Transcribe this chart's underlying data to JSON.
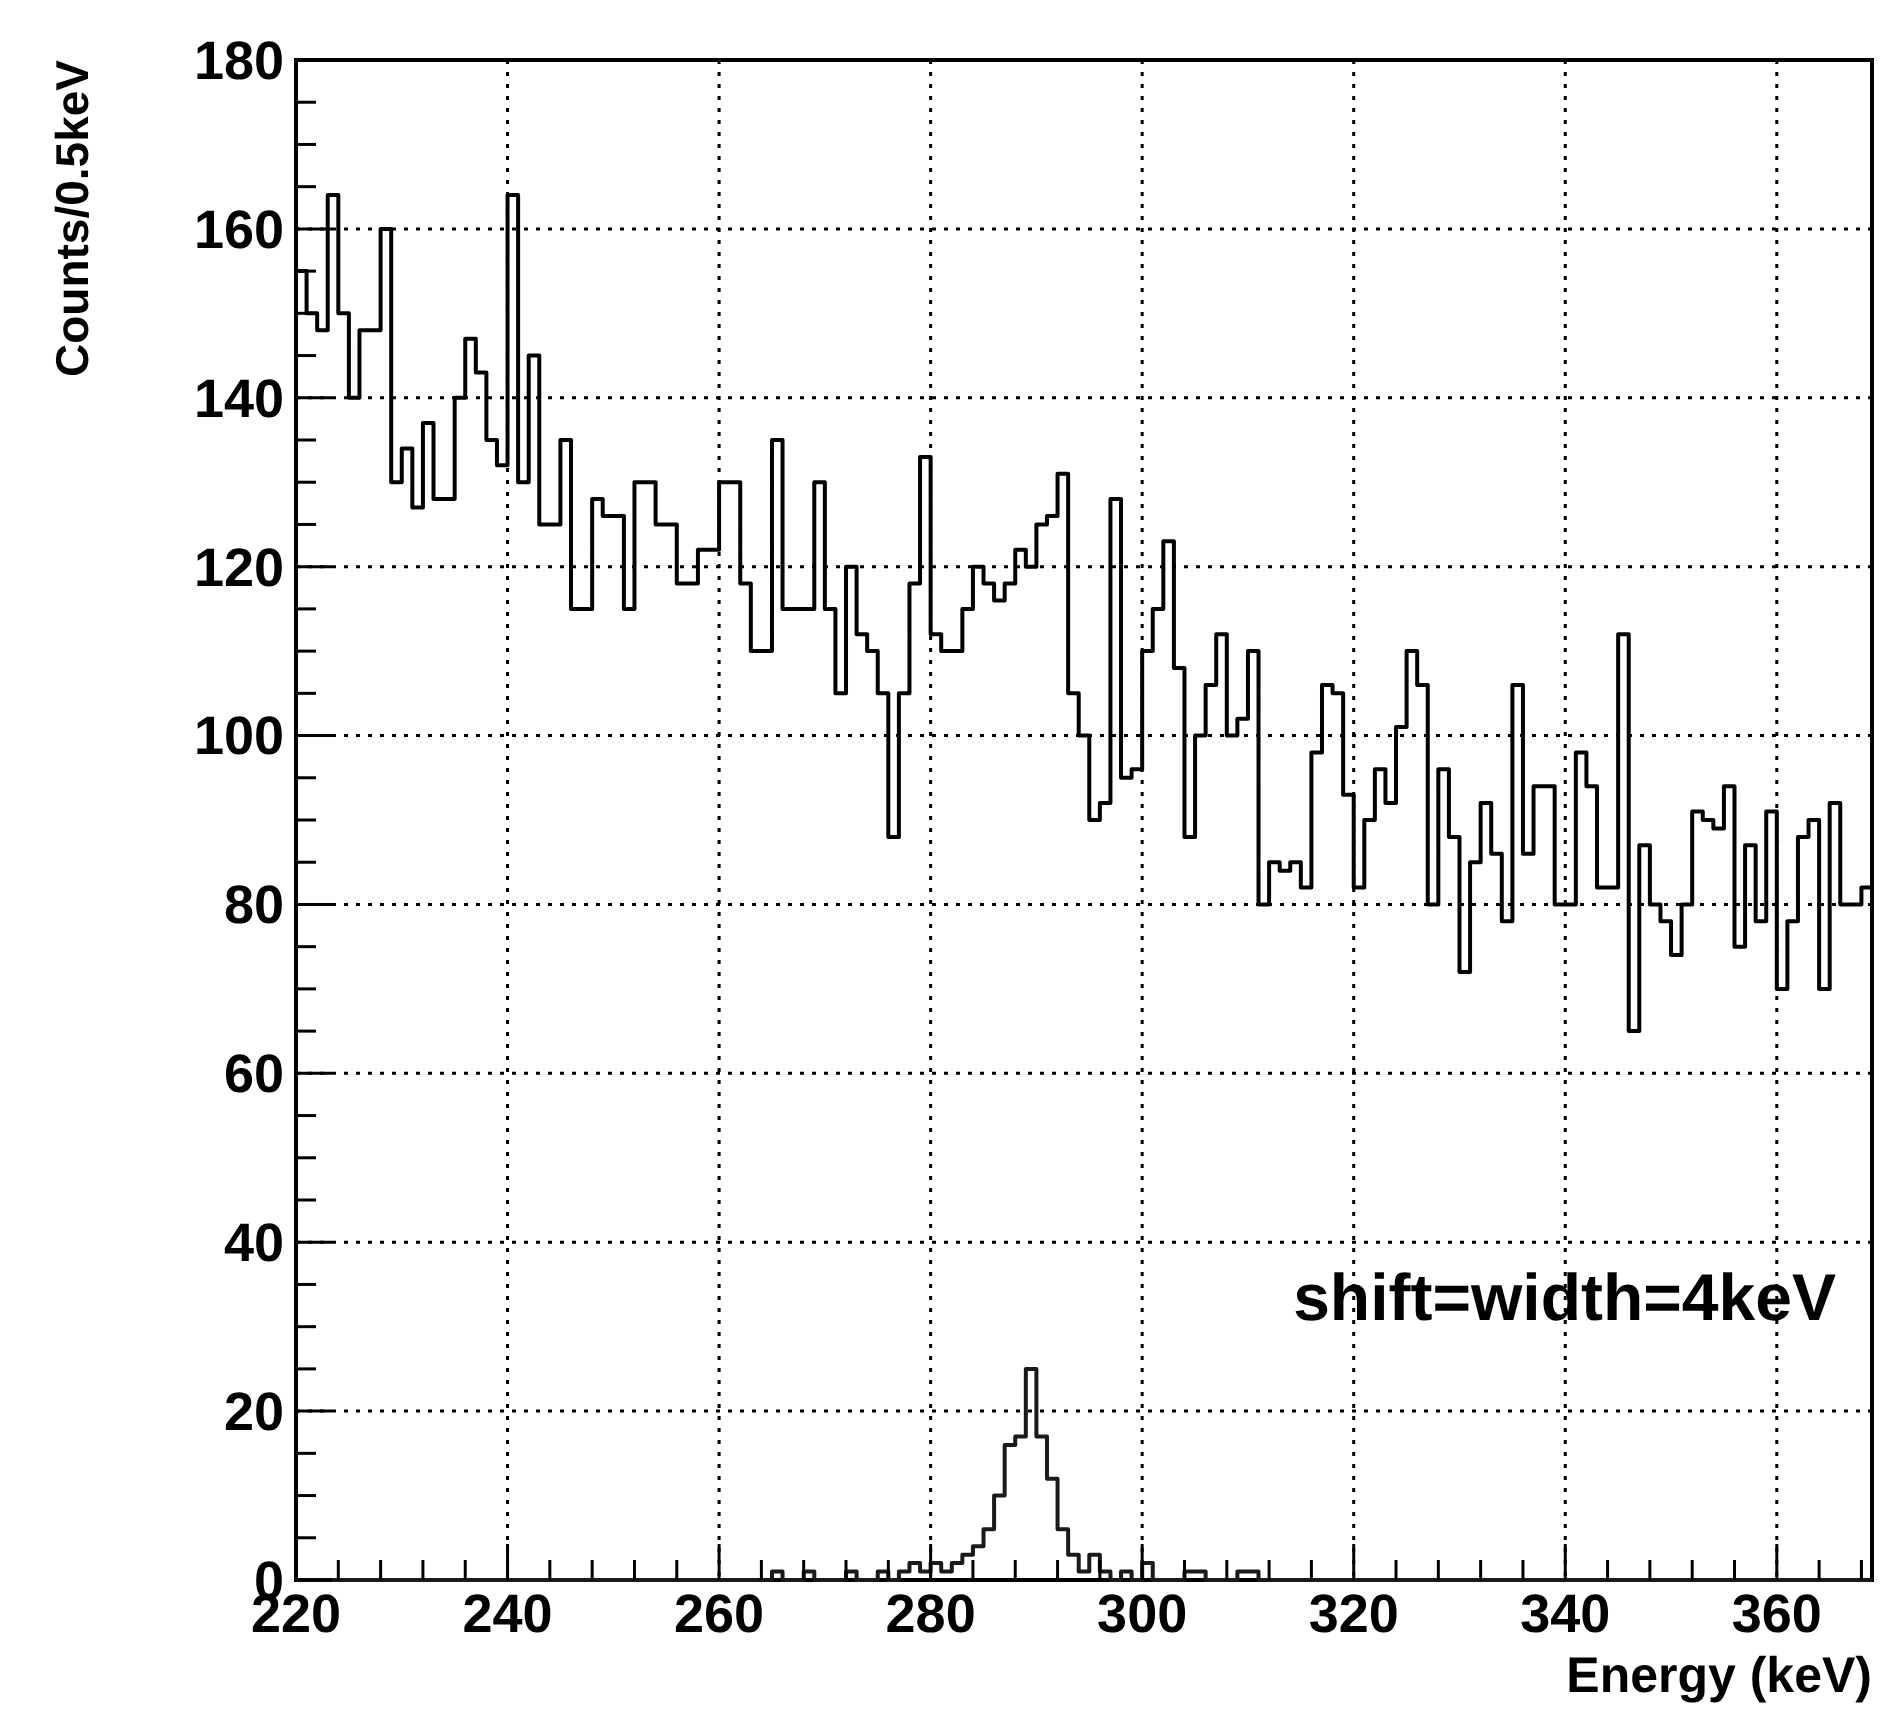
{
  "chart_data": {
    "type": "histogram",
    "xlabel": "Energy (keV)",
    "ylabel": "Counts/0.5keV",
    "annotations": [
      "shift=width=4keV"
    ],
    "bins": [
      220,
      221,
      222,
      223,
      224,
      225,
      226,
      227,
      228,
      229,
      230,
      231,
      232,
      233,
      234,
      235,
      236,
      237,
      238,
      239,
      240,
      241,
      242,
      243,
      244,
      245,
      246,
      247,
      248,
      249,
      250,
      251,
      252,
      253,
      254,
      255,
      256,
      257,
      258,
      259,
      260,
      261,
      262,
      263,
      264,
      265,
      266,
      267,
      268,
      269,
      270,
      271,
      272,
      273,
      274,
      275,
      276,
      277,
      278,
      279,
      280,
      281,
      282,
      283,
      284,
      285,
      286,
      287,
      288,
      289,
      290,
      291,
      292,
      293,
      294,
      295,
      296,
      297,
      298,
      299,
      300,
      301,
      302,
      303,
      304,
      305,
      306,
      307,
      308,
      309,
      310,
      311,
      312,
      313,
      314,
      315,
      316,
      317,
      318,
      319,
      320,
      321,
      322,
      323,
      324,
      325,
      326,
      327,
      328,
      329,
      330,
      331,
      332,
      333,
      334,
      335,
      336,
      337,
      338,
      339,
      340,
      341,
      342,
      343,
      344,
      345,
      346,
      347,
      348,
      349,
      350,
      351,
      352,
      353,
      354,
      355,
      356,
      357,
      358,
      359,
      360,
      361,
      362,
      363,
      364,
      365,
      366,
      367,
      368,
      369
    ],
    "series": [
      {
        "color": "#000000",
        "values": [
          155,
          150,
          148,
          164,
          150,
          140,
          148,
          148,
          160,
          130,
          134,
          127,
          137,
          128,
          128,
          140,
          147,
          143,
          135,
          132,
          164,
          130,
          145,
          125,
          125,
          135,
          115,
          115,
          128,
          126,
          126,
          115,
          130,
          130,
          125,
          125,
          118,
          118,
          122,
          122,
          130,
          130,
          118,
          110,
          110,
          135,
          115,
          115,
          115,
          130,
          115,
          105,
          120,
          112,
          110,
          105,
          88,
          105,
          118,
          133,
          112,
          110,
          110,
          115,
          120,
          118,
          116,
          118,
          122,
          120,
          125,
          126,
          131,
          105,
          100,
          90,
          92,
          128,
          95,
          96,
          110,
          115,
          123,
          108,
          88,
          100,
          106,
          112,
          100,
          102,
          110,
          80,
          85,
          84,
          85,
          82,
          98,
          106,
          105,
          93,
          82,
          90,
          96,
          92,
          101,
          110,
          106,
          80,
          96,
          88,
          72,
          85,
          92,
          86,
          78,
          106,
          86,
          94,
          94,
          80,
          80,
          98,
          94,
          82,
          82,
          112,
          65,
          87,
          80,
          78,
          74,
          80,
          91,
          90,
          89,
          94,
          75,
          87,
          78,
          91,
          70,
          78,
          88,
          90,
          70,
          92,
          80,
          80,
          82
        ]
      },
      {
        "color": "#1a1a1a",
        "values": [
          0,
          0,
          0,
          0,
          0,
          0,
          0,
          0,
          0,
          0,
          0,
          0,
          0,
          0,
          0,
          0,
          0,
          0,
          0,
          0,
          0,
          0,
          0,
          0,
          0,
          0,
          0,
          0,
          0,
          0,
          0,
          0,
          0,
          0,
          0,
          0,
          0,
          0,
          0,
          0,
          0,
          0,
          0,
          0,
          0,
          1,
          0,
          0,
          1,
          0,
          0,
          0,
          1,
          0,
          0,
          1,
          0,
          1,
          2,
          1,
          2,
          1,
          2,
          3,
          4,
          6,
          10,
          16,
          17,
          25,
          17,
          12,
          6,
          3,
          1,
          3,
          1,
          0,
          1,
          0,
          2,
          0,
          0,
          0,
          1,
          1,
          0,
          0,
          0,
          1,
          1,
          0,
          0,
          0,
          0,
          0,
          0,
          0,
          0,
          0,
          0,
          0,
          0,
          0,
          0,
          0,
          0,
          0,
          0,
          0,
          0,
          0,
          0,
          0,
          0,
          0,
          0,
          0,
          0,
          0,
          0,
          0,
          0,
          0,
          0,
          0,
          0,
          0,
          0,
          0,
          0,
          0,
          0,
          0,
          0,
          0,
          0,
          0,
          0,
          0,
          0,
          0,
          0,
          0,
          0,
          0,
          0,
          0,
          0
        ]
      }
    ],
    "xlim": [
      220,
      369
    ],
    "ylim": [
      0,
      180
    ],
    "xticks": [
      220,
      {
        "value": 224,
        "label": null
      },
      {
        "value": 228,
        "label": null
      },
      {
        "value": 232,
        "label": null
      },
      {
        "value": 236,
        "label": null
      },
      240,
      {
        "value": 244,
        "label": null
      },
      {
        "value": 248,
        "label": null
      },
      {
        "value": 252,
        "label": null
      },
      {
        "value": 256,
        "label": null
      },
      260,
      {
        "value": 264,
        "label": null
      },
      {
        "value": 268,
        "label": null
      },
      {
        "value": 272,
        "label": null
      },
      {
        "value": 276,
        "label": null
      },
      280,
      {
        "value": 284,
        "label": null
      },
      {
        "value": 288,
        "label": null
      },
      {
        "value": 292,
        "label": null
      },
      {
        "value": 296,
        "label": null
      },
      300,
      {
        "value": 304,
        "label": null
      },
      {
        "value": 308,
        "label": null
      },
      {
        "value": 312,
        "label": null
      },
      {
        "value": 316,
        "label": null
      },
      320,
      {
        "value": 324,
        "label": null
      },
      {
        "value": 328,
        "label": null
      },
      {
        "value": 332,
        "label": null
      },
      {
        "value": 336,
        "label": null
      },
      340,
      {
        "value": 344,
        "label": null
      },
      {
        "value": 348,
        "label": null
      },
      {
        "value": 352,
        "label": null
      },
      {
        "value": 356,
        "label": null
      },
      360,
      {
        "value": 364,
        "label": null
      },
      {
        "value": 368,
        "label": null
      }
    ],
    "yticks": [
      0,
      {
        "value": 5,
        "label": null
      },
      {
        "value": 10,
        "label": null
      },
      {
        "value": 15,
        "label": null
      },
      20,
      {
        "value": 25,
        "label": null
      },
      {
        "value": 30,
        "label": null
      },
      {
        "value": 35,
        "label": null
      },
      40,
      {
        "value": 45,
        "label": null
      },
      {
        "value": 50,
        "label": null
      },
      {
        "value": 55,
        "label": null
      },
      60,
      {
        "value": 65,
        "label": null
      },
      {
        "value": 70,
        "label": null
      },
      {
        "value": 75,
        "label": null
      },
      80,
      {
        "value": 85,
        "label": null
      },
      {
        "value": 90,
        "label": null
      },
      {
        "value": 95,
        "label": null
      },
      100,
      {
        "value": 105,
        "label": null
      },
      {
        "value": 110,
        "label": null
      },
      {
        "value": 115,
        "label": null
      },
      120,
      {
        "value": 125,
        "label": null
      },
      {
        "value": 130,
        "label": null
      },
      {
        "value": 135,
        "label": null
      },
      140,
      {
        "value": 145,
        "label": null
      },
      {
        "value": 150,
        "label": null
      },
      {
        "value": 155,
        "label": null
      },
      160,
      {
        "value": 165,
        "label": null
      },
      {
        "value": 170,
        "label": null
      },
      {
        "value": 175,
        "label": null
      },
      180
    ],
    "grid": true
  }
}
